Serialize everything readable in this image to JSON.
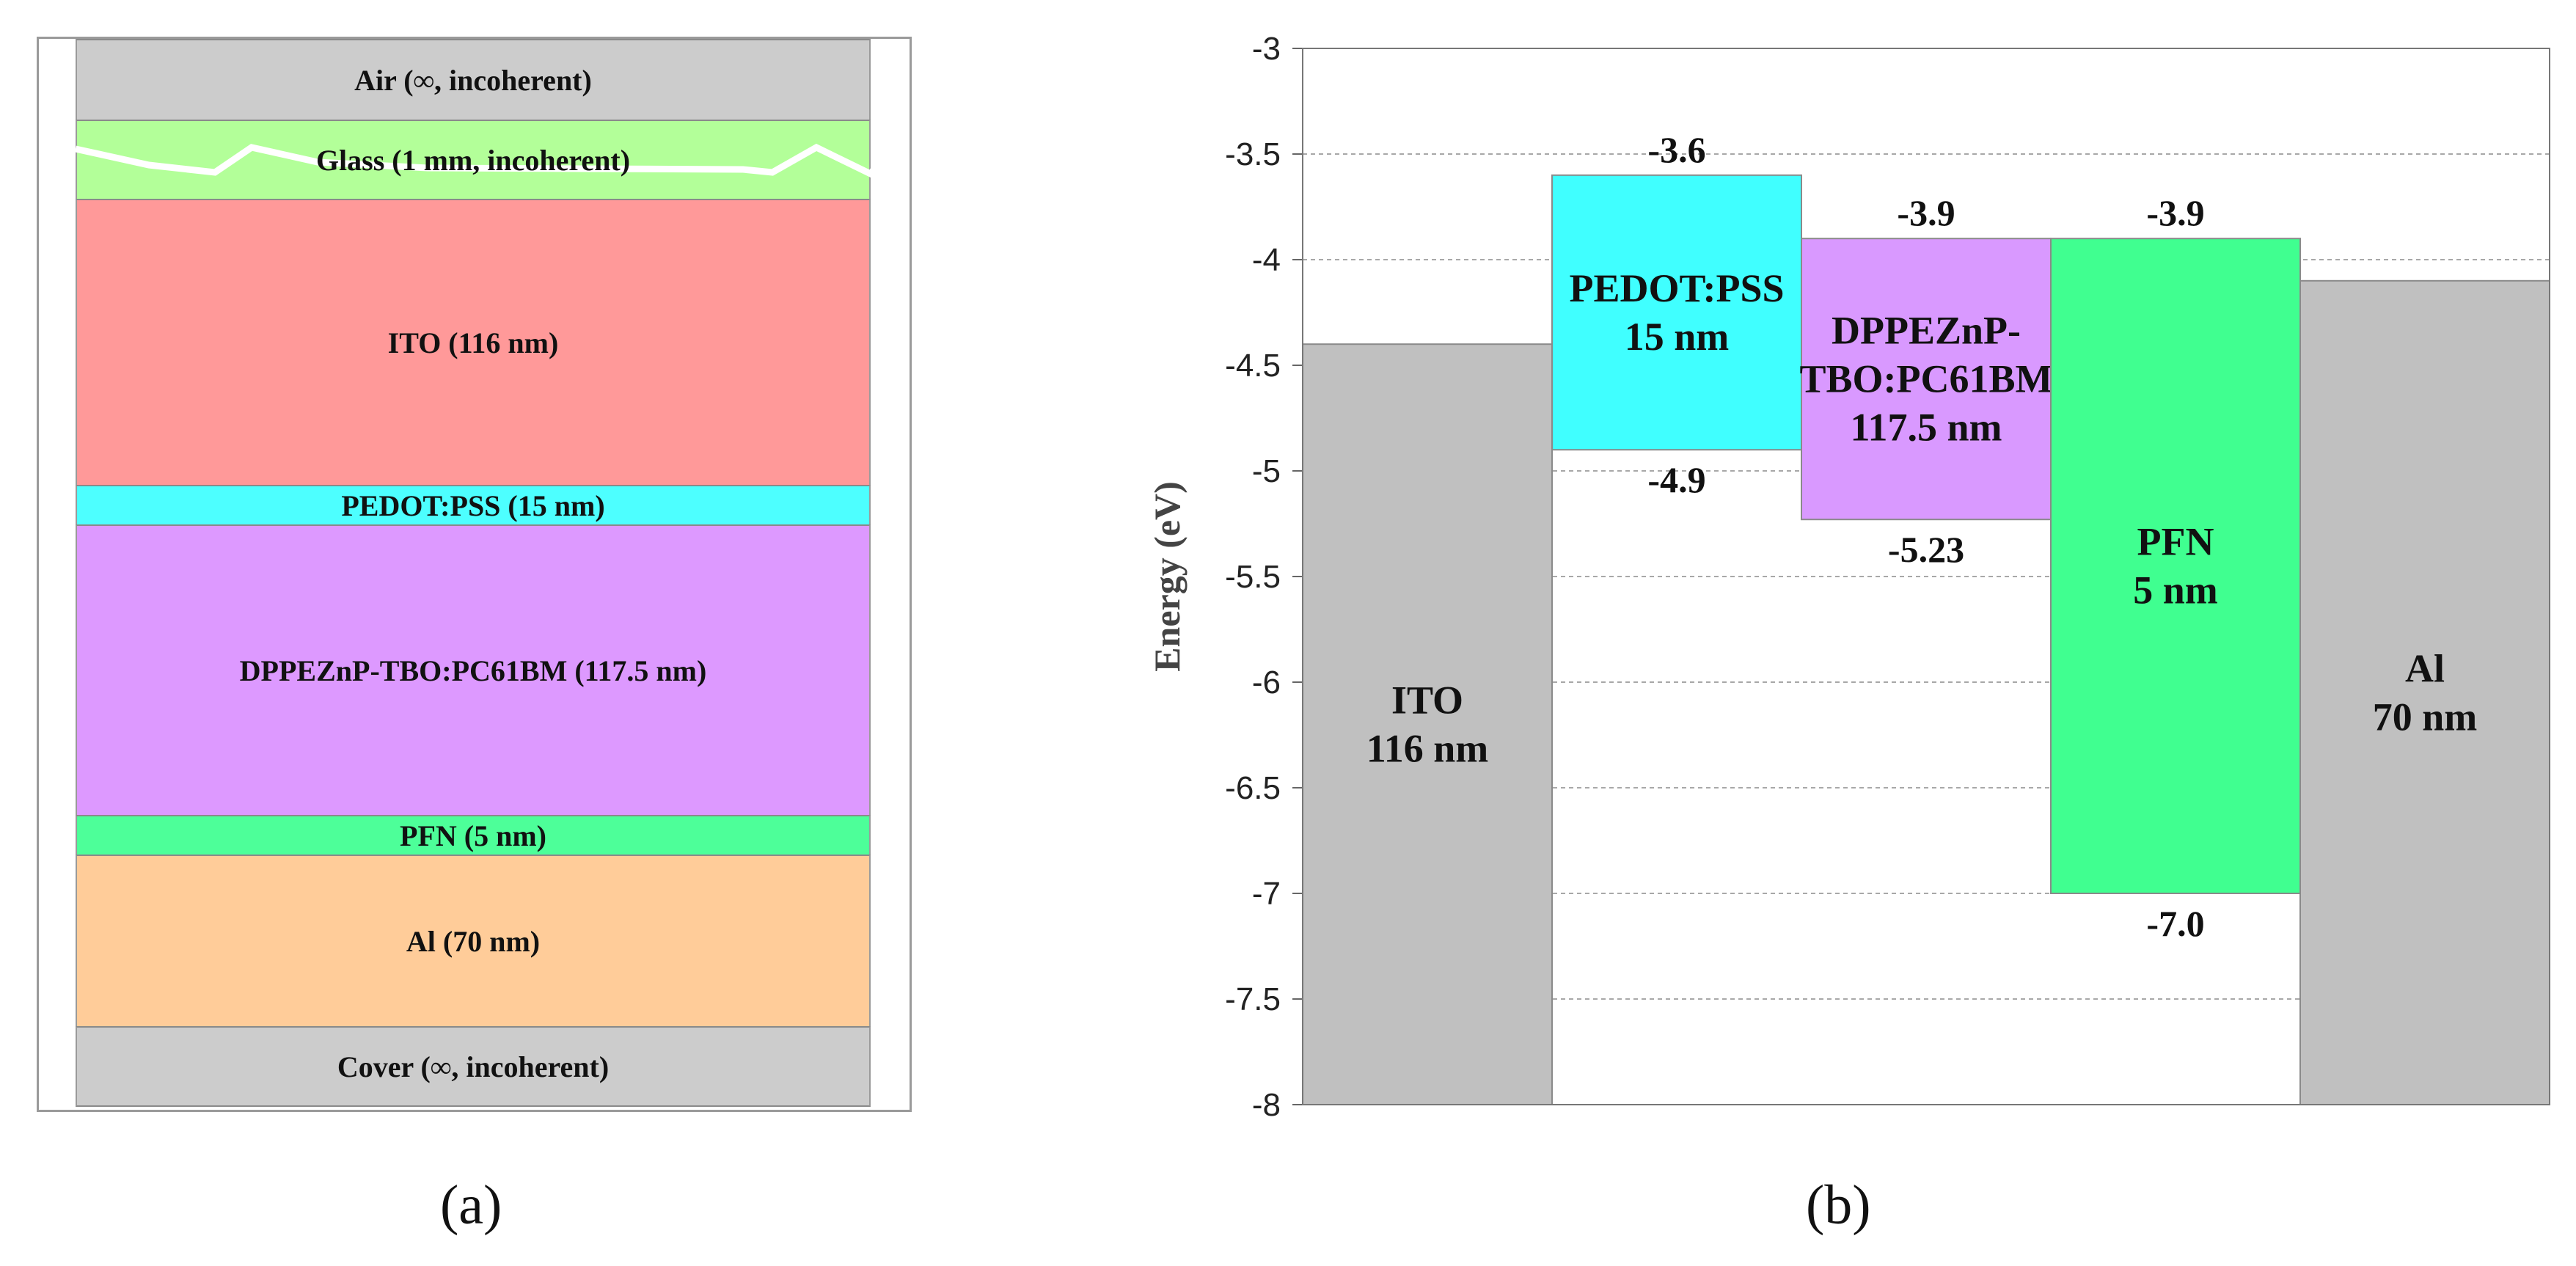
{
  "panel_a": {
    "layers": [
      {
        "label": "Air (∞, incoherent)",
        "color": "#cccccc"
      },
      {
        "label": "Glass (1 mm, incoherent)",
        "color": "#b3ff99"
      },
      {
        "label": "ITO (116 nm)",
        "color": "#ff9999"
      },
      {
        "label": "PEDOT:PSS (15 nm)",
        "color": "#4dffff"
      },
      {
        "label": "DPPEZnP-TBO:PC61BM (117.5 nm)",
        "color": "#dd99ff"
      },
      {
        "label": "PFN (5 nm)",
        "color": "#4dff99"
      },
      {
        "label": "Al (70 nm)",
        "color": "#ffcc99"
      },
      {
        "label": "Cover (∞, incoherent)",
        "color": "#cccccc"
      }
    ],
    "caption": "(a)"
  },
  "panel_b": {
    "caption": "(b)",
    "chart_data": {
      "type": "energy-level diagram",
      "ylabel": "Energy (eV)",
      "ylim": [
        -8,
        -3
      ],
      "yticks": [
        "-3",
        "-3.5",
        "-4",
        "-4.5",
        "-5",
        "-5.5",
        "-6",
        "-6.5",
        "-7",
        "-7.5",
        "-8"
      ],
      "ytick_values": [
        -3,
        -3.5,
        -4,
        -4.5,
        -5,
        -5.5,
        -6,
        -6.5,
        -7,
        -7.5,
        -8
      ],
      "grid": "horizontal dashed",
      "layers": [
        {
          "name": "ITO",
          "thickness": "116 nm",
          "top": -4.4,
          "bottom": -8,
          "color": "#c0c0c0",
          "top_label": "",
          "bottom_label": ""
        },
        {
          "name": "PEDOT:PSS",
          "thickness": "15 nm",
          "top": -3.6,
          "bottom": -4.9,
          "color": "#40ffff",
          "top_label": "-3.6",
          "bottom_label": "-4.9"
        },
        {
          "name": "DPPEZnP-\nTBO:PC61BM",
          "thickness": "117.5 nm",
          "top": -3.9,
          "bottom": -5.23,
          "color": "#d999ff",
          "top_label": "-3.9",
          "bottom_label": "-5.23"
        },
        {
          "name": "PFN",
          "thickness": "5 nm",
          "top": -3.9,
          "bottom": -7.0,
          "color": "#40ff90",
          "top_label": "-3.9",
          "bottom_label": "-7.0"
        },
        {
          "name": "Al",
          "thickness": "70 nm",
          "top": -4.1,
          "bottom": -8,
          "color": "#c0c0c0",
          "top_label": "",
          "bottom_label": ""
        }
      ]
    }
  }
}
